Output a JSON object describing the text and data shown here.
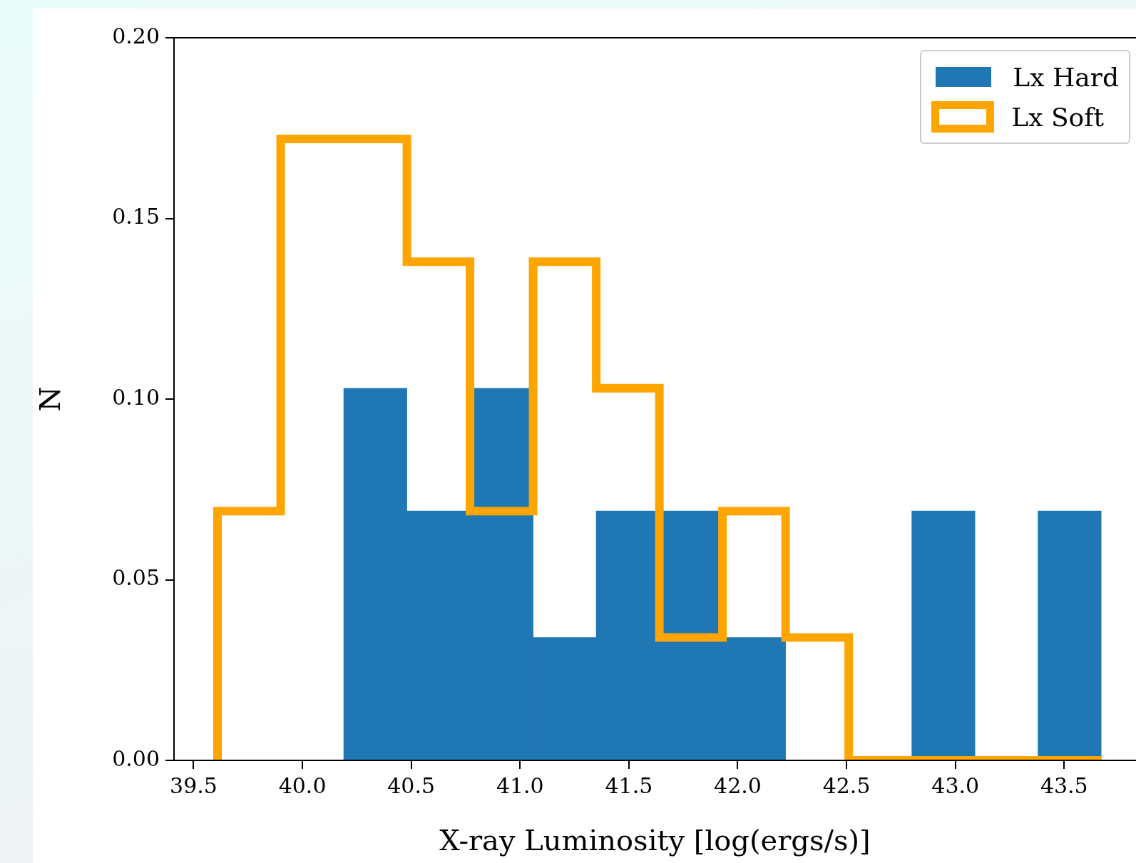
{
  "chart_data": {
    "type": "histogram",
    "xlabel": "X-ray Luminosity [log(ergs/s)]",
    "ylabel": "N",
    "bins": [
      39.61,
      39.9,
      40.19,
      40.48,
      40.77,
      41.06,
      41.35,
      41.64,
      41.93,
      42.22,
      42.51,
      42.8,
      43.09,
      43.38,
      43.67
    ],
    "series": [
      {
        "name": "Lx Hard",
        "color": "#1f77b4",
        "values": [
          0,
          0,
          0.103,
          0.069,
          0.103,
          0.034,
          0.069,
          0.069,
          0.034,
          0,
          0,
          0.069,
          0,
          0.069
        ]
      },
      {
        "name": "Lx Soft",
        "type": "step",
        "color": "#ffa500",
        "x": [
          39.61,
          39.61,
          39.9,
          40.19,
          40.48,
          40.77,
          41.06,
          41.35,
          41.64,
          41.93,
          42.22,
          42.51,
          42.8,
          43.09,
          43.38,
          43.67
        ],
        "values": [
          0,
          0.069,
          0.172,
          0.172,
          0.138,
          0.069,
          0.138,
          0.103,
          0.034,
          0.069,
          0.034,
          0,
          0,
          0,
          0,
          0
        ]
      }
    ],
    "xlim": [
      39.41,
      43.83
    ],
    "ylim": [
      0,
      0.2
    ],
    "xticks": [
      {
        "value": 39.5,
        "label": "39.5"
      },
      {
        "value": 40,
        "label": "40.0"
      },
      {
        "value": 40.5,
        "label": "40.5"
      },
      {
        "value": 41,
        "label": "41.0"
      },
      {
        "value": 41.5,
        "label": "41.5"
      },
      {
        "value": 42,
        "label": "42.0"
      },
      {
        "value": 42.5,
        "label": "42.5"
      },
      {
        "value": 43,
        "label": "43.0"
      },
      {
        "value": 43.5,
        "label": "43.5"
      }
    ],
    "yticks": [
      {
        "value": 0,
        "label": "0.00"
      },
      {
        "value": 0.05,
        "label": "0.05"
      },
      {
        "value": 0.1,
        "label": "0.10"
      },
      {
        "value": 0.15,
        "label": "0.15"
      },
      {
        "value": 0.2,
        "label": "0.20"
      }
    ],
    "legend": "top right",
    "grid": false
  }
}
